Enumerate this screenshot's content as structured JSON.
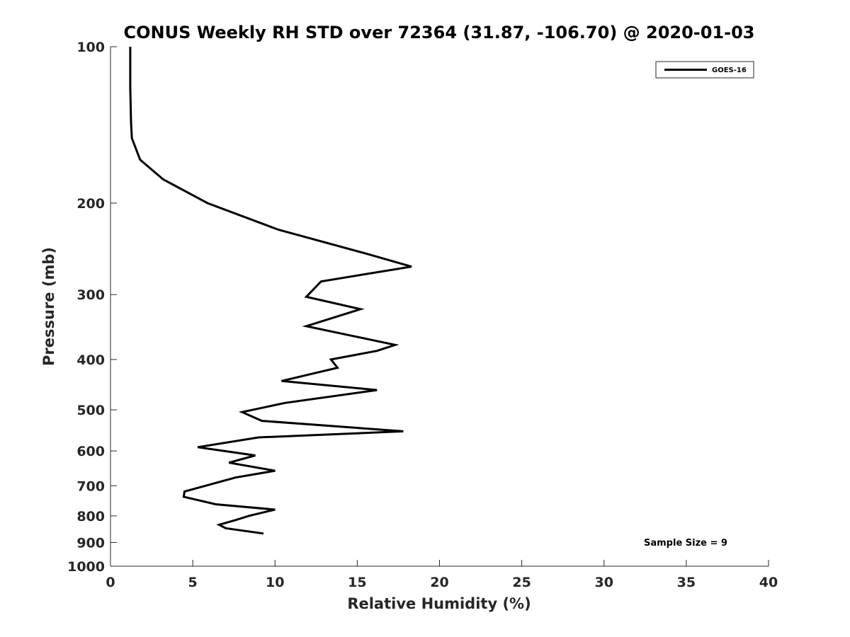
{
  "chart_data": {
    "type": "line",
    "title": "CONUS Weekly RH STD over 72364 (31.87, -106.70) @ 2020-01-03",
    "xlabel": "Relative Humidity (%)",
    "ylabel": "Pressure (mb)",
    "xlim": [
      0,
      40
    ],
    "ylim": [
      100,
      1000
    ],
    "y_scale": "log",
    "y_reversed": true,
    "x_ticks": [
      0,
      5,
      10,
      15,
      20,
      25,
      30,
      35,
      40
    ],
    "x_tick_labels": [
      "0",
      "5",
      "10",
      "15",
      "20",
      "25",
      "30",
      "35",
      "40"
    ],
    "y_ticks": [
      100,
      200,
      300,
      400,
      500,
      600,
      700,
      800,
      900,
      1000
    ],
    "y_tick_labels": [
      "100",
      "200",
      "300",
      "400",
      "500",
      "600",
      "700",
      "800",
      "900",
      "1000"
    ],
    "grid": false,
    "legend_position": "top-right",
    "annotation": "Sample Size = 9",
    "series": [
      {
        "name": "GOES-16",
        "color": "#000000",
        "points": [
          [
            1.2,
            100
          ],
          [
            1.2,
            120
          ],
          [
            1.25,
            140
          ],
          [
            1.3,
            150
          ],
          [
            1.8,
            165
          ],
          [
            3.2,
            180
          ],
          [
            5.9,
            200
          ],
          [
            10.2,
            225
          ],
          [
            15.5,
            250
          ],
          [
            18.3,
            265
          ],
          [
            12.8,
            283
          ],
          [
            11.9,
            303
          ],
          [
            15.2,
            320
          ],
          [
            11.9,
            345
          ],
          [
            17.3,
            375
          ],
          [
            16.2,
            385
          ],
          [
            13.4,
            400
          ],
          [
            13.8,
            415
          ],
          [
            10.4,
            440
          ],
          [
            16.2,
            458
          ],
          [
            10.6,
            485
          ],
          [
            8.0,
            505
          ],
          [
            9.2,
            525
          ],
          [
            17.8,
            550
          ],
          [
            9.0,
            565
          ],
          [
            5.3,
            590
          ],
          [
            8.8,
            612
          ],
          [
            7.2,
            632
          ],
          [
            10.0,
            655
          ],
          [
            7.6,
            675
          ],
          [
            6.5,
            690
          ],
          [
            4.5,
            718
          ],
          [
            4.45,
            735
          ],
          [
            6.4,
            760
          ],
          [
            10.0,
            778
          ],
          [
            8.4,
            800
          ],
          [
            7.6,
            815
          ],
          [
            6.6,
            832
          ],
          [
            7.0,
            845
          ],
          [
            9.3,
            865
          ]
        ]
      }
    ]
  }
}
